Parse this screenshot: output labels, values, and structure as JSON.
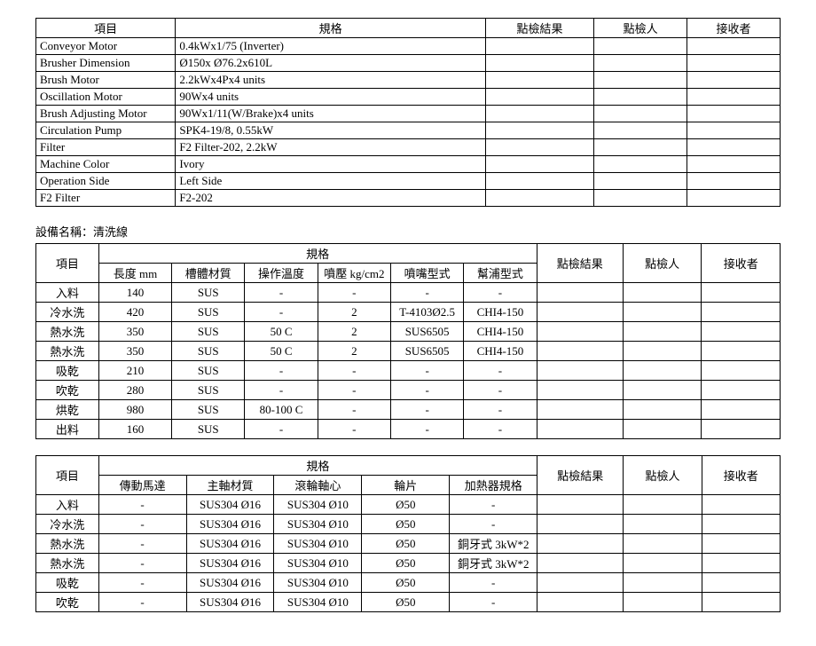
{
  "table1": {
    "headers": [
      "項目",
      "規格",
      "點檢結果",
      "點檢人",
      "接收者"
    ],
    "rows": [
      [
        "Conveyor Motor",
        "0.4kWx1/75 (Inverter)",
        "",
        "",
        ""
      ],
      [
        "Brusher Dimension",
        "Ø150x Ø76.2x610L",
        "",
        "",
        ""
      ],
      [
        "Brush Motor",
        "2.2kWx4Px4 units",
        "",
        "",
        ""
      ],
      [
        "Oscillation Motor",
        "90Wx4 units",
        "",
        "",
        ""
      ],
      [
        "Brush Adjusting Motor",
        "90Wx1/11(W/Brake)x4 units",
        "",
        "",
        ""
      ],
      [
        "Circulation Pump",
        "SPK4-19/8, 0.55kW",
        "",
        "",
        ""
      ],
      [
        "Filter",
        "F2 Filter-202, 2.2kW",
        "",
        "",
        ""
      ],
      [
        "Machine Color",
        "Ivory",
        "",
        "",
        ""
      ],
      [
        "Operation Side",
        "Left Side",
        "",
        "",
        ""
      ],
      [
        "F2 Filter",
        "F2-202",
        "",
        "",
        ""
      ]
    ]
  },
  "sectionTitle": "設備名稱：清洗線",
  "table2": {
    "topHeaders": [
      "項目",
      "規格",
      "點檢結果",
      "點檢人",
      "接收者"
    ],
    "subHeaders": [
      "長度 mm",
      "槽體材質",
      "操作溫度",
      "噴壓 kg/cm2",
      "噴嘴型式",
      "幫浦型式"
    ],
    "rows": [
      [
        "入料",
        "140",
        "SUS",
        "-",
        "-",
        "-",
        "-",
        "",
        "",
        ""
      ],
      [
        "冷水洗",
        "420",
        "SUS",
        "-",
        "2",
        "T-4103Ø2.5",
        "CHI4-150",
        "",
        "",
        ""
      ],
      [
        "熱水洗",
        "350",
        "SUS",
        "50 C",
        "2",
        "SUS6505",
        "CHI4-150",
        "",
        "",
        ""
      ],
      [
        "熱水洗",
        "350",
        "SUS",
        "50 C",
        "2",
        "SUS6505",
        "CHI4-150",
        "",
        "",
        ""
      ],
      [
        "吸乾",
        "210",
        "SUS",
        "-",
        "-",
        "-",
        "-",
        "",
        "",
        ""
      ],
      [
        "吹乾",
        "280",
        "SUS",
        "-",
        "-",
        "-",
        "-",
        "",
        "",
        ""
      ],
      [
        "烘乾",
        "980",
        "SUS",
        "80-100 C",
        "-",
        "-",
        "-",
        "",
        "",
        ""
      ],
      [
        "出料",
        "160",
        "SUS",
        "-",
        "-",
        "-",
        "-",
        "",
        "",
        ""
      ]
    ]
  },
  "table3": {
    "topHeaders": [
      "項目",
      "規格",
      "點檢結果",
      "點檢人",
      "接收者"
    ],
    "subHeaders": [
      "傳動馬達",
      "主軸材質",
      "滾輪軸心",
      "輪片",
      "加熱器規格"
    ],
    "rows": [
      [
        "入料",
        "-",
        "SUS304 Ø16",
        "SUS304 Ø10",
        "Ø50",
        "-",
        "",
        "",
        ""
      ],
      [
        "冷水洗",
        "-",
        "SUS304 Ø16",
        "SUS304 Ø10",
        "Ø50",
        "-",
        "",
        "",
        ""
      ],
      [
        "熱水洗",
        "-",
        "SUS304 Ø16",
        "SUS304 Ø10",
        "Ø50",
        "銅牙式 3kW*2",
        "",
        "",
        ""
      ],
      [
        "熱水洗",
        "-",
        "SUS304 Ø16",
        "SUS304 Ø10",
        "Ø50",
        "銅牙式 3kW*2",
        "",
        "",
        ""
      ],
      [
        "吸乾",
        "-",
        "SUS304 Ø16",
        "SUS304 Ø10",
        "Ø50",
        "-",
        "",
        "",
        ""
      ],
      [
        "吹乾",
        "-",
        "SUS304 Ø16",
        "SUS304 Ø10",
        "Ø50",
        "-",
        "",
        "",
        ""
      ]
    ]
  }
}
